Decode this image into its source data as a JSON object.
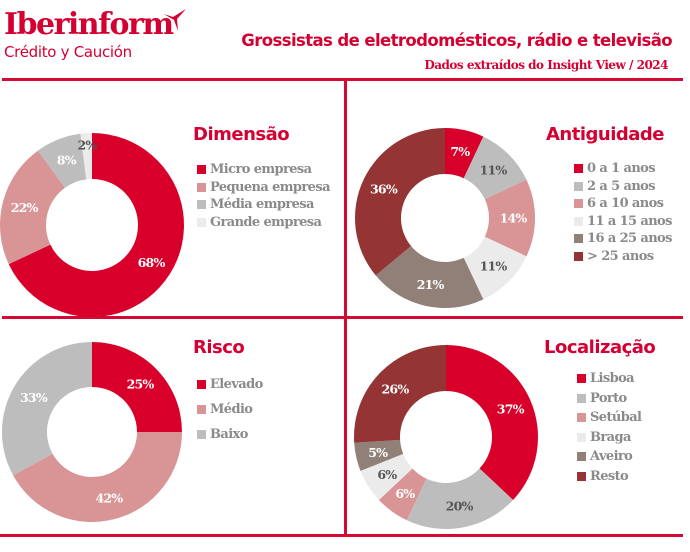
{
  "header": {
    "brand_name": "Iberinform",
    "brand_sub": "Crédito y Caución",
    "logo_icon": "bird-wing-icon",
    "title": "Grossistas de eletrodomésticos, rádio e televisão",
    "subtitle": "Dados extraídos do Insight View / 2024"
  },
  "colors": {
    "brand_red": "#d50032",
    "micro_red": "#d8002a",
    "pink": "#d99595",
    "light_gray": "#bdbdbd",
    "very_light_gray": "#ebebeb",
    "taupe": "#918078",
    "dark_red": "#943434",
    "legend_text": "#8a8a8a",
    "dark_label": "#555555"
  },
  "chart_data": [
    {
      "type": "pie",
      "variant": "donut",
      "title": "Dimensão",
      "categories": [
        "Micro empresa",
        "Pequena empresa",
        "Média empresa",
        "Grande empresa"
      ],
      "values": [
        68,
        22,
        8,
        2
      ],
      "labels": [
        "68%",
        "22%",
        "8%",
        "2%"
      ],
      "colors": [
        "#d8002a",
        "#d99595",
        "#bdbdbd",
        "#ebebeb"
      ],
      "label_colors": [
        "#ffffff",
        "#ffffff",
        "#ffffff",
        "#555555"
      ],
      "legend_position": "right",
      "start": "top",
      "direction": "clockwise"
    },
    {
      "type": "pie",
      "variant": "donut",
      "title": "Antiguidade",
      "categories": [
        "0 a 1 anos",
        "2 a 5 anos",
        "6 a 10 anos",
        "11 a 15 anos",
        "16 a 25 anos",
        "> 25 anos"
      ],
      "values": [
        7,
        11,
        14,
        11,
        21,
        36
      ],
      "labels": [
        "7%",
        "11%",
        "14%",
        "11%",
        "21%",
        "36%"
      ],
      "colors": [
        "#d8002a",
        "#bdbdbd",
        "#d99595",
        "#ebebeb",
        "#918078",
        "#943434"
      ],
      "label_colors": [
        "#ffffff",
        "#555555",
        "#ffffff",
        "#555555",
        "#ffffff",
        "#ffffff"
      ],
      "legend_position": "right",
      "start": "top",
      "direction": "clockwise"
    },
    {
      "type": "pie",
      "variant": "donut",
      "title": "Risco",
      "categories": [
        "Elevado",
        "Médio",
        "Baixo"
      ],
      "values": [
        25,
        42,
        33
      ],
      "labels": [
        "25%",
        "42%",
        "33%"
      ],
      "colors": [
        "#d8002a",
        "#d99595",
        "#bdbdbd"
      ],
      "label_colors": [
        "#ffffff",
        "#ffffff",
        "#ffffff"
      ],
      "legend_position": "right",
      "start": "top",
      "direction": "clockwise"
    },
    {
      "type": "pie",
      "variant": "donut",
      "title": "Localização",
      "categories": [
        "Lisboa",
        "Porto",
        "Setúbal",
        "Braga",
        "Aveiro",
        "Resto"
      ],
      "values": [
        37,
        20,
        6,
        6,
        5,
        26
      ],
      "labels": [
        "37%",
        "20%",
        "6%",
        "6%",
        "5%",
        "26%"
      ],
      "colors": [
        "#d8002a",
        "#bdbdbd",
        "#d99595",
        "#ebebeb",
        "#918078",
        "#943434"
      ],
      "label_colors": [
        "#ffffff",
        "#555555",
        "#ffffff",
        "#555555",
        "#ffffff",
        "#ffffff"
      ],
      "legend_position": "right",
      "start": "top",
      "direction": "clockwise"
    }
  ]
}
